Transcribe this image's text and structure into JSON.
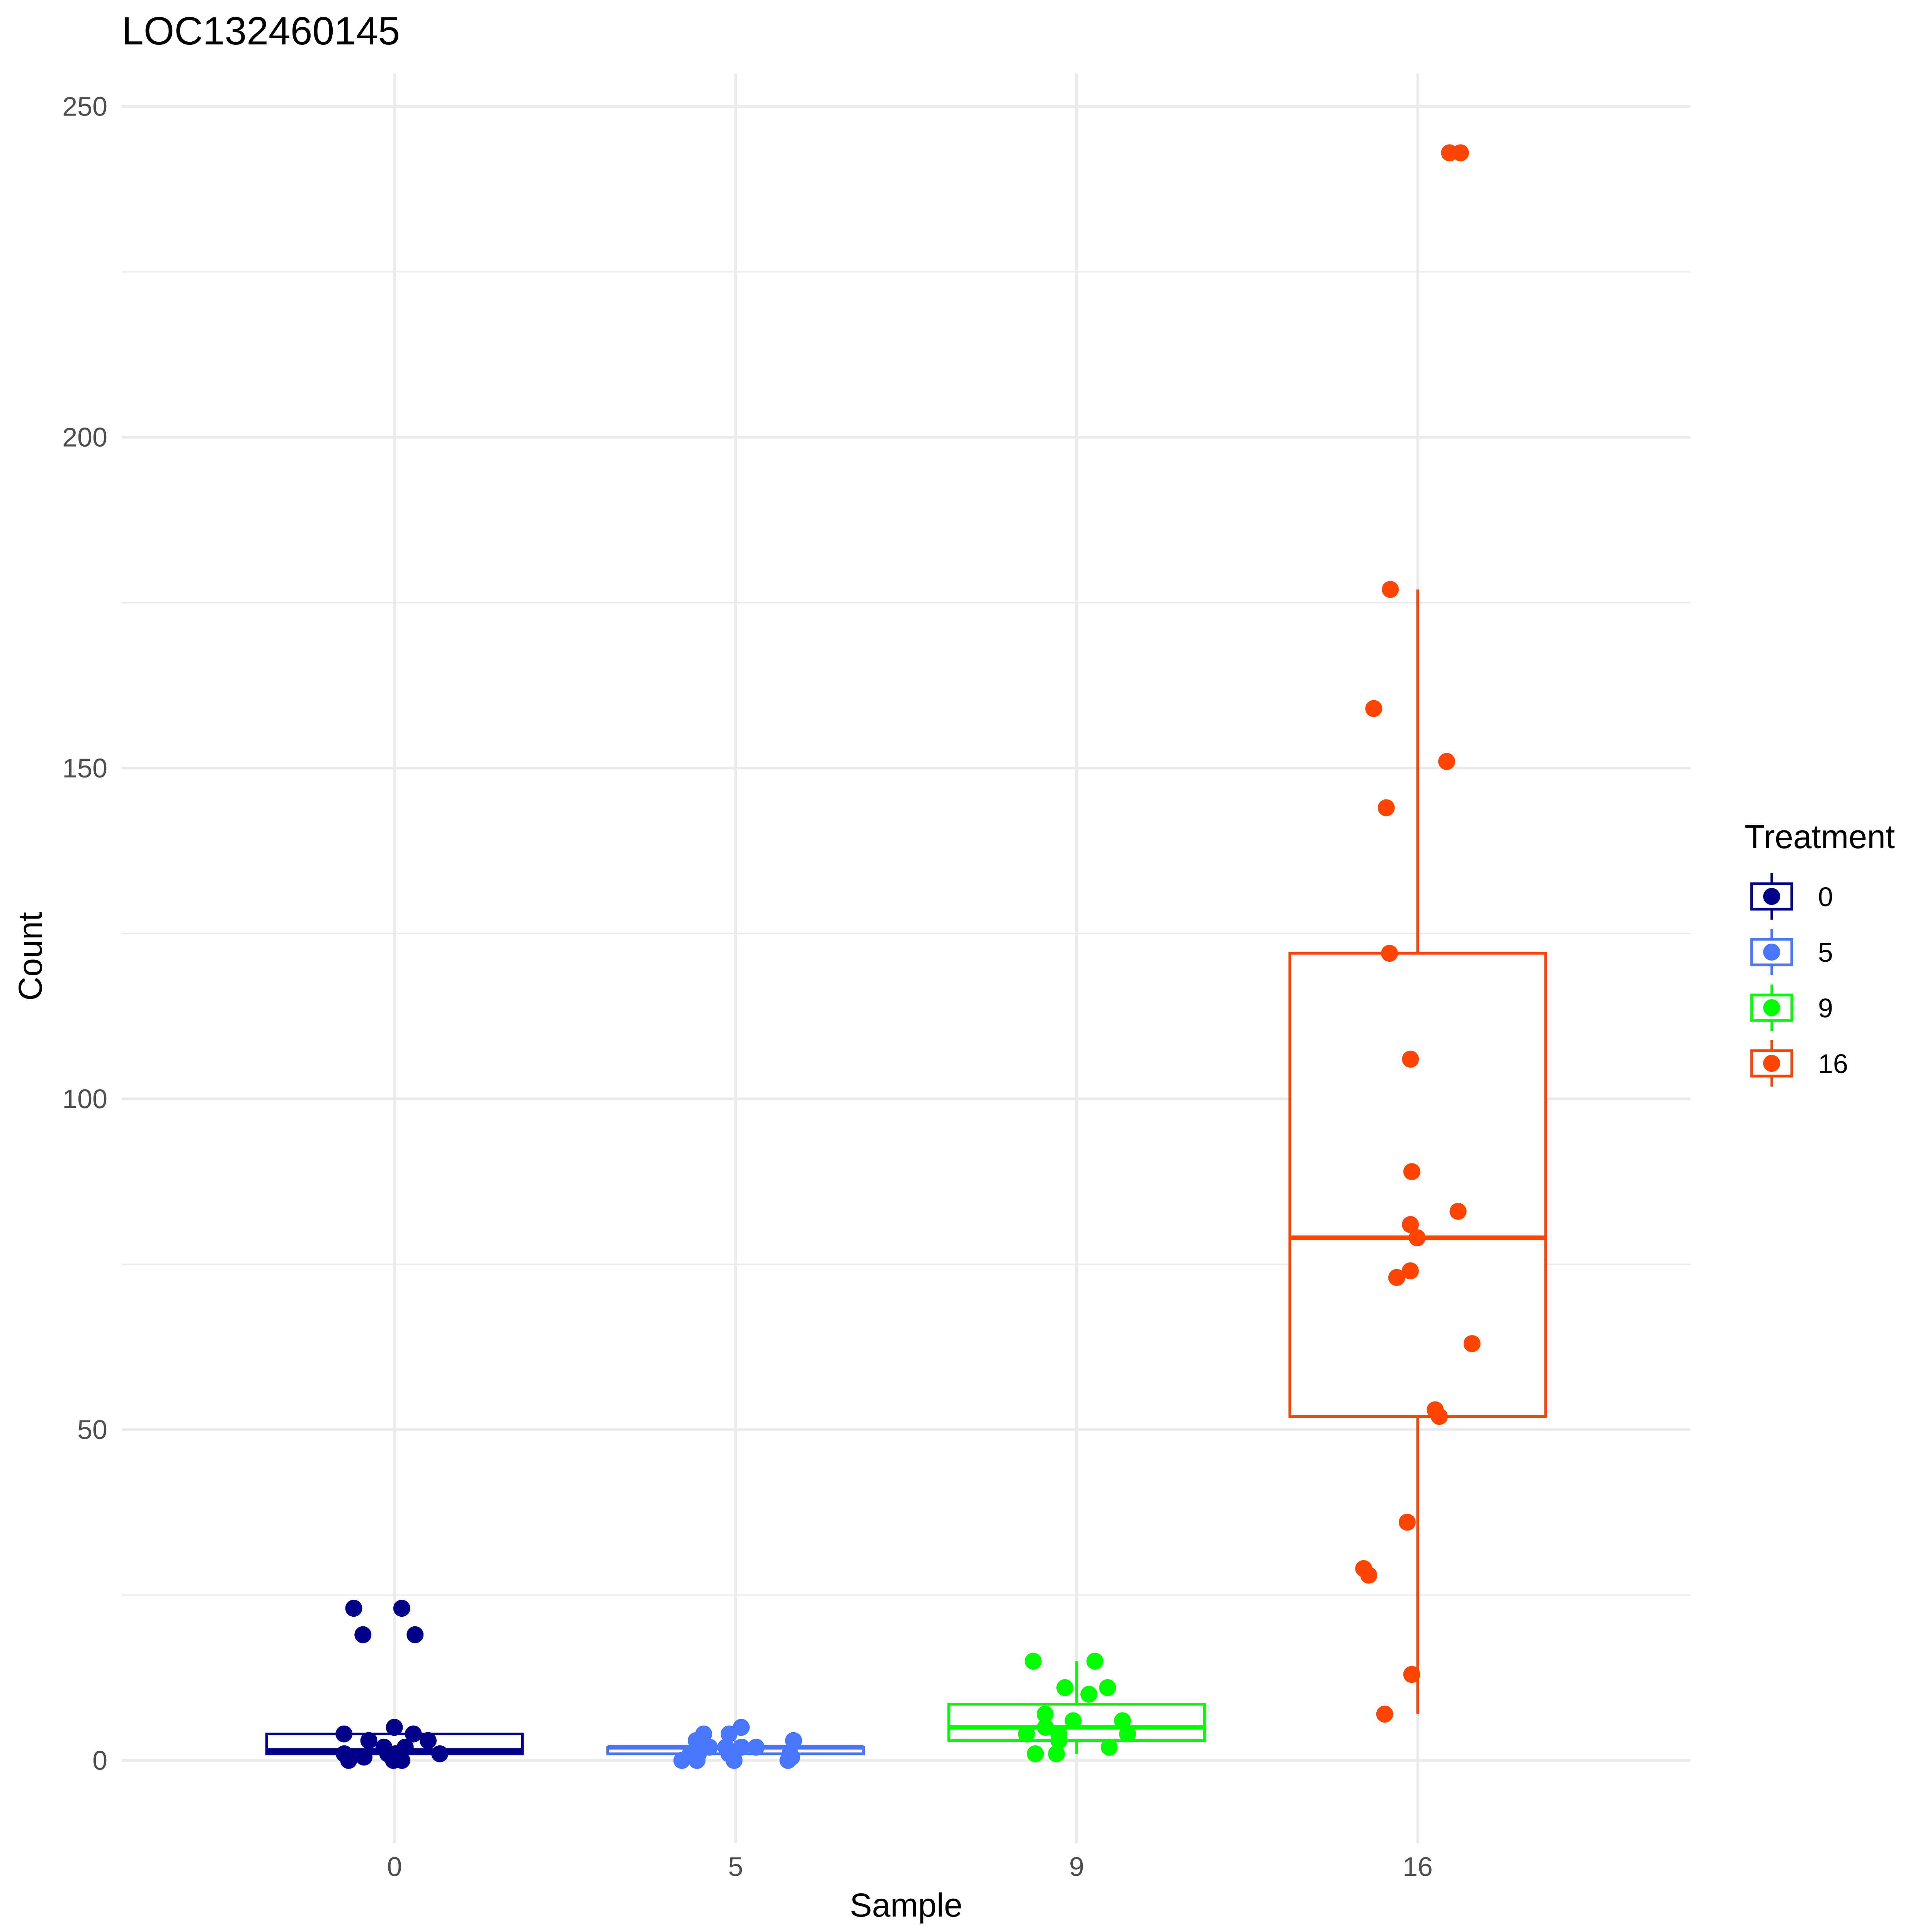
{
  "chart_data": {
    "type": "box",
    "title": "LOC132460145",
    "xlabel": "Sample",
    "ylabel": "Count",
    "categories": [
      "0",
      "5",
      "9",
      "16"
    ],
    "ylim": [
      -12.5,
      255
    ],
    "y_ticks": [
      "0",
      "50",
      "100",
      "150",
      "200",
      "250"
    ],
    "grid": true,
    "legend": {
      "title": "Treatment",
      "position": "right",
      "entries": [
        "0",
        "5",
        "9",
        "16"
      ]
    },
    "series": [
      {
        "name": "0",
        "color": "#00008B",
        "box": {
          "q1": 1,
          "median": 1.5,
          "q3": 4,
          "whisker_low": 0,
          "whisker_high": 5
        },
        "points": [
          0,
          0,
          0,
          0.5,
          1,
          1,
          1,
          1,
          2,
          2,
          3,
          3,
          4,
          4,
          5,
          19,
          19,
          23,
          23
        ]
      },
      {
        "name": "5",
        "color": "#4876FF",
        "box": {
          "q1": 1,
          "median": 2,
          "q3": 2,
          "whisker_low": 0,
          "whisker_high": 3
        },
        "points": [
          0,
          0,
          0,
          0,
          0.5,
          1,
          1,
          1,
          1,
          2,
          2,
          2,
          2,
          3,
          3,
          4,
          4,
          5
        ]
      },
      {
        "name": "9",
        "color": "#00FF00",
        "box": {
          "q1": 3,
          "median": 5,
          "q3": 8.5,
          "whisker_low": 1,
          "whisker_high": 15
        },
        "points": [
          1,
          1,
          2,
          3,
          4,
          4,
          4,
          5,
          6,
          6,
          7,
          10,
          11,
          11,
          15,
          15
        ]
      },
      {
        "name": "16",
        "color": "#FF4500",
        "box": {
          "q1": 52,
          "median": 79,
          "q3": 122,
          "whisker_low": 7,
          "whisker_high": 177
        },
        "points": [
          7,
          13,
          28,
          29,
          36,
          52,
          53,
          63,
          73,
          74,
          79,
          81,
          83,
          89,
          106,
          122,
          144,
          151,
          159,
          177,
          243,
          243
        ]
      }
    ]
  }
}
